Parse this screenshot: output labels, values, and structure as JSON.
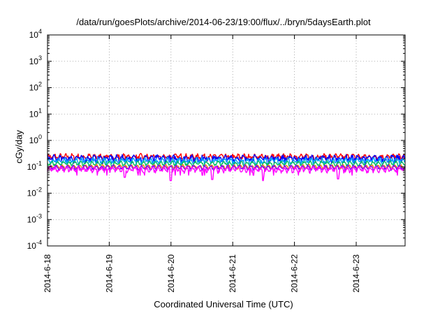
{
  "chart_data": {
    "type": "line",
    "title": "/data/run/goesPlots/archive/2014-06-23/19:00/flux/../bryn/5daysEarth.plot",
    "xlabel": "Coordinated Universal Time (UTC)",
    "ylabel": "cGy/day",
    "x_ticks": [
      "2014-6-18",
      "2014-6-19",
      "2014-6-20",
      "2014-6-21",
      "2014-6-22",
      "2014-6-23"
    ],
    "xlim": [
      "2014-06-18T00:00",
      "2014-06-23T19:00"
    ],
    "y_scale": "log",
    "ylim": [
      0.0001,
      10000
    ],
    "y_ticks": [
      {
        "base": "10",
        "exp": "4",
        "value": 10000
      },
      {
        "base": "10",
        "exp": "3",
        "value": 1000
      },
      {
        "base": "10",
        "exp": "2",
        "value": 100
      },
      {
        "base": "10",
        "exp": "1",
        "value": 10
      },
      {
        "base": "10",
        "exp": "0",
        "value": 1
      },
      {
        "base": "10",
        "exp": "-1",
        "value": 0.1
      },
      {
        "base": "10",
        "exp": "-2",
        "value": 0.01
      },
      {
        "base": "10",
        "exp": "-3",
        "value": 0.001
      },
      {
        "base": "10",
        "exp": "-4",
        "value": 0.0001
      }
    ],
    "grid": true,
    "grid_style": "dotted",
    "series": [
      {
        "color": "#ff0000",
        "level": 0.24,
        "noise": 0.1,
        "dips": false
      },
      {
        "color": "#0000ff",
        "level": 0.21,
        "noise": 0.12,
        "dips": false
      },
      {
        "color": "#00a0ff",
        "level": 0.17,
        "noise": 0.1,
        "dips": false
      },
      {
        "color": "#00c060",
        "level": 0.135,
        "noise": 0.05,
        "dips": false
      },
      {
        "color": "#ff8000",
        "level": 0.1,
        "noise": 0.04,
        "dips": false
      },
      {
        "color": "#8000ff",
        "level": 0.095,
        "noise": 0.05,
        "dips": false
      },
      {
        "color": "#ff00ff",
        "level": 0.08,
        "noise": 0.08,
        "dips": true,
        "dip_values": [
          {
            "x": "2014-06-19T06:00",
            "y": 0.04
          },
          {
            "x": "2014-06-20T00:00",
            "y": 0.03
          },
          {
            "x": "2014-06-20T16:00",
            "y": 0.033
          },
          {
            "x": "2014-06-21T12:00",
            "y": 0.03
          },
          {
            "x": "2014-06-22T17:00",
            "y": 0.035
          }
        ]
      }
    ]
  }
}
